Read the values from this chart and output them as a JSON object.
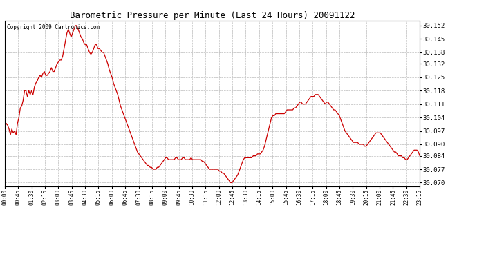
{
  "title": "Barometric Pressure per Minute (Last 24 Hours) 20091122",
  "copyright": "Copyright 2009 Cartronics.com",
  "line_color": "#cc0000",
  "background_color": "#ffffff",
  "plot_bg_color": "#ffffff",
  "grid_color": "#aaaaaa",
  "yticks": [
    30.07,
    30.077,
    30.084,
    30.09,
    30.097,
    30.104,
    30.111,
    30.118,
    30.125,
    30.132,
    30.138,
    30.145,
    30.152
  ],
  "ylim": [
    30.068,
    30.1545
  ],
  "xtick_labels": [
    "00:00",
    "00:45",
    "01:30",
    "02:15",
    "03:00",
    "03:45",
    "04:30",
    "05:15",
    "06:00",
    "06:45",
    "07:30",
    "08:15",
    "09:00",
    "09:45",
    "10:30",
    "11:15",
    "12:00",
    "12:45",
    "13:30",
    "14:15",
    "15:00",
    "15:45",
    "16:30",
    "17:15",
    "18:00",
    "18:45",
    "19:30",
    "20:15",
    "21:00",
    "21:45",
    "22:30",
    "23:15"
  ],
  "pressure_data": [
    30.097,
    30.101,
    30.1,
    30.098,
    30.095,
    30.098,
    30.096,
    30.097,
    30.095,
    30.101,
    30.104,
    30.109,
    30.11,
    30.113,
    30.118,
    30.118,
    30.115,
    30.118,
    30.116,
    30.118,
    30.116,
    30.12,
    30.122,
    30.123,
    30.125,
    30.126,
    30.125,
    30.127,
    30.128,
    30.126,
    30.126,
    30.127,
    30.128,
    30.13,
    30.128,
    30.128,
    30.13,
    30.132,
    30.133,
    30.134,
    30.134,
    30.136,
    30.14,
    30.144,
    30.148,
    30.15,
    30.148,
    30.146,
    30.148,
    30.15,
    30.152,
    30.152,
    30.15,
    30.148,
    30.146,
    30.145,
    30.143,
    30.142,
    30.142,
    30.14,
    30.138,
    30.137,
    30.138,
    30.14,
    30.142,
    30.142,
    30.14,
    30.14,
    30.139,
    30.138,
    30.138,
    30.136,
    30.134,
    30.132,
    30.129,
    30.127,
    30.125,
    30.122,
    30.12,
    30.118,
    30.116,
    30.113,
    30.11,
    30.108,
    30.106,
    30.104,
    30.102,
    30.1,
    30.098,
    30.096,
    30.094,
    30.092,
    30.09,
    30.088,
    30.086,
    30.085,
    30.084,
    30.083,
    30.082,
    30.081,
    30.08,
    30.079,
    30.079,
    30.078,
    30.078,
    30.077,
    30.077,
    30.077,
    30.078,
    30.078,
    30.079,
    30.08,
    30.081,
    30.082,
    30.083,
    30.083,
    30.082,
    30.082,
    30.082,
    30.082,
    30.082,
    30.083,
    30.083,
    30.082,
    30.082,
    30.082,
    30.083,
    30.083,
    30.082,
    30.082,
    30.082,
    30.082,
    30.083,
    30.082,
    30.082,
    30.082,
    30.082,
    30.082,
    30.082,
    30.082,
    30.081,
    30.081,
    30.08,
    30.079,
    30.078,
    30.077,
    30.077,
    30.077,
    30.077,
    30.077,
    30.077,
    30.077,
    30.076,
    30.076,
    30.075,
    30.075,
    30.074,
    30.073,
    30.072,
    30.071,
    30.07,
    30.07,
    30.071,
    30.072,
    30.073,
    30.074,
    30.076,
    30.078,
    30.08,
    30.082,
    30.083,
    30.083,
    30.083,
    30.083,
    30.083,
    30.083,
    30.084,
    30.084,
    30.084,
    30.085,
    30.085,
    30.085,
    30.086,
    30.087,
    30.089,
    30.092,
    30.095,
    30.098,
    30.101,
    30.104,
    30.105,
    30.105,
    30.106,
    30.106,
    30.106,
    30.106,
    30.106,
    30.106,
    30.106,
    30.107,
    30.108,
    30.108,
    30.108,
    30.108,
    30.108,
    30.109,
    30.109,
    30.11,
    30.111,
    30.112,
    30.112,
    30.111,
    30.111,
    30.111,
    30.112,
    30.113,
    30.114,
    30.115,
    30.115,
    30.115,
    30.116,
    30.116,
    30.116,
    30.115,
    30.114,
    30.113,
    30.112,
    30.111,
    30.112,
    30.112,
    30.111,
    30.11,
    30.109,
    30.108,
    30.108,
    30.107,
    30.106,
    30.105,
    30.103,
    30.101,
    30.099,
    30.097,
    30.096,
    30.095,
    30.094,
    30.093,
    30.092,
    30.091,
    30.091,
    30.091,
    30.091,
    30.09,
    30.09,
    30.09,
    30.09,
    30.089,
    30.089,
    30.09,
    30.091,
    30.092,
    30.093,
    30.094,
    30.095,
    30.096,
    30.096,
    30.096,
    30.096,
    30.095,
    30.094,
    30.093,
    30.092,
    30.091,
    30.09,
    30.089,
    30.088,
    30.087,
    30.086,
    30.086,
    30.085,
    30.084,
    30.084,
    30.084,
    30.083,
    30.083,
    30.082,
    30.082,
    30.083,
    30.084,
    30.085,
    30.086,
    30.087,
    30.087,
    30.087,
    30.086,
    30.084
  ]
}
